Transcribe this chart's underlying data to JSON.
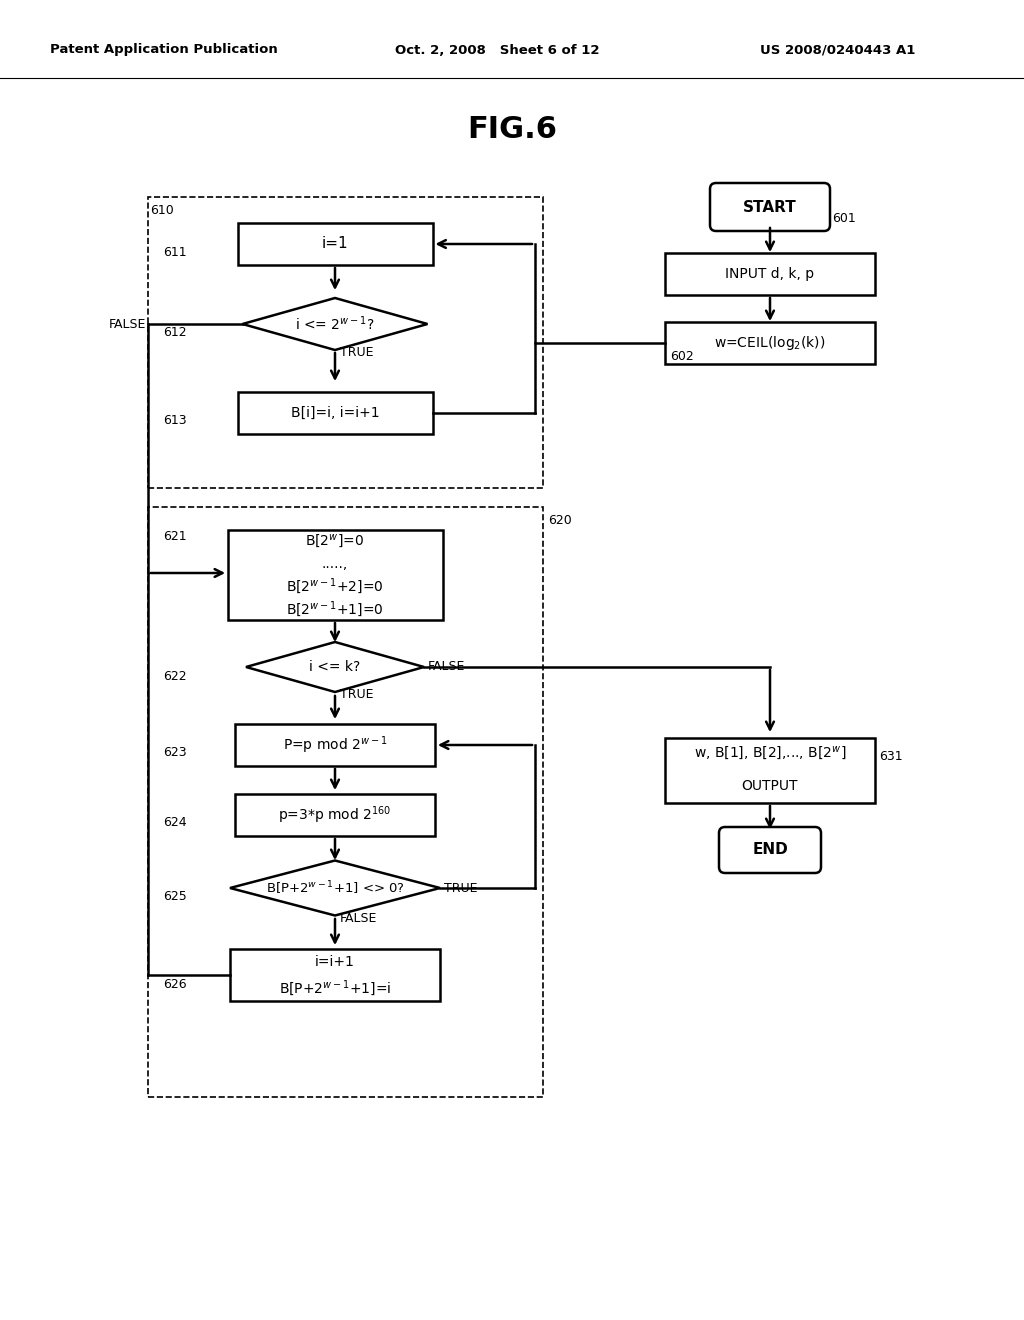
{
  "title": "FIG.6",
  "header_left": "Patent Application Publication",
  "header_mid": "Oct. 2, 2008   Sheet 6 of 12",
  "header_right": "US 2008/0240443 A1",
  "background": "#ffffff"
}
